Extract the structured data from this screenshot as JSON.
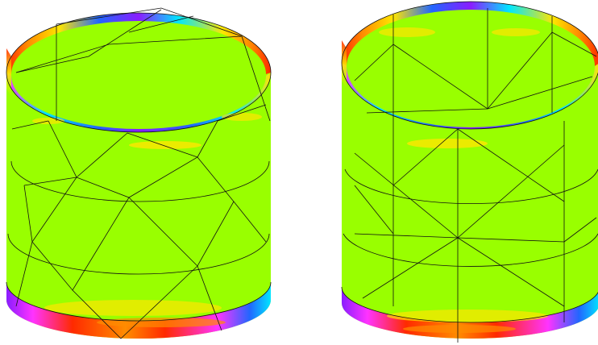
{
  "figure": {
    "panels": [
      {
        "id": "left",
        "mesh": "unstructured-triangles"
      },
      {
        "id": "right",
        "mesh": "structured-triangles"
      }
    ],
    "colors": {
      "background": "#ffffff",
      "surface": "#99ff00",
      "mesh_line": "#111111",
      "band_colors": [
        "#ff2a00",
        "#ff8c00",
        "#ffe600",
        "#ccff33",
        "#00e6ff",
        "#2266ff",
        "#8a1cff",
        "#ff33ff"
      ]
    }
  }
}
